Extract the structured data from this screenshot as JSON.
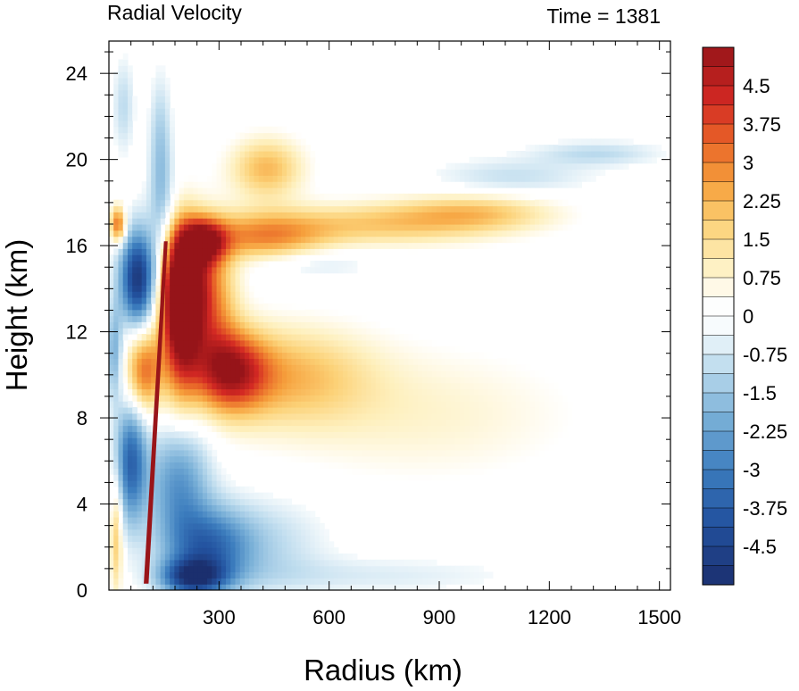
{
  "chart_data": {
    "type": "heatmap",
    "title_left": "Radial Velocity",
    "title_right": "Time = 1381",
    "xlabel": "Radius (km)",
    "ylabel": "Height (km)",
    "xlim": [
      0,
      1530
    ],
    "ylim": [
      0,
      25.5
    ],
    "xticks": [
      300,
      600,
      900,
      1200,
      1500
    ],
    "yticks": [
      0,
      4,
      8,
      12,
      16,
      20,
      24
    ],
    "colorbar": {
      "min": -5.25,
      "max": 5.25,
      "step": 0.375,
      "tick_labels": [
        "4.5",
        "3.75",
        "3",
        "2.25",
        "1.5",
        "0.75",
        "0",
        "-0.75",
        "-1.5",
        "-2.25",
        "-3",
        "-3.75",
        "-4.5"
      ],
      "tick_values": [
        4.5,
        3.75,
        3,
        2.25,
        1.5,
        0.75,
        0,
        -0.75,
        -1.5,
        -2.25,
        -3,
        -3.75,
        -4.5
      ]
    },
    "features": [
      {
        "r": 200,
        "z": 14.2,
        "v": 5.5,
        "sr": 45,
        "sz": 2.0
      },
      {
        "r": 195,
        "z": 12.0,
        "v": 3.0,
        "sr": 35,
        "sz": 2.5
      },
      {
        "r": 330,
        "z": 10.2,
        "v": 3.8,
        "sr": 70,
        "sz": 1.3
      },
      {
        "r": 480,
        "z": 10.0,
        "v": 2.0,
        "sr": 160,
        "sz": 1.6
      },
      {
        "r": 850,
        "z": 8.2,
        "v": 0.8,
        "sr": 300,
        "sz": 2.2
      },
      {
        "r": 280,
        "z": 13.5,
        "v": 2.5,
        "sr": 50,
        "sz": 2.2
      },
      {
        "r": 260,
        "z": 16.2,
        "v": 3.6,
        "sr": 40,
        "sz": 0.7
      },
      {
        "r": 420,
        "z": 16.4,
        "v": 2.6,
        "sr": 120,
        "sz": 0.8
      },
      {
        "r": 750,
        "z": 17.0,
        "v": 1.8,
        "sr": 230,
        "sz": 0.7
      },
      {
        "r": 1000,
        "z": 17.6,
        "v": 1.6,
        "sr": 150,
        "sz": 0.6
      },
      {
        "r": 430,
        "z": 19.6,
        "v": 2.2,
        "sr": 70,
        "sz": 1.0
      },
      {
        "r": 80,
        "z": 14.5,
        "v": -5.0,
        "sr": 35,
        "sz": 1.6
      },
      {
        "r": 145,
        "z": 17.5,
        "v": -1.5,
        "sr": 25,
        "sz": 2.0
      },
      {
        "r": 25,
        "z": 17.0,
        "v": 3.5,
        "sr": 15,
        "sz": 0.6
      },
      {
        "r": 95,
        "z": 10.2,
        "v": 3.2,
        "sr": 35,
        "sz": 1.4
      },
      {
        "r": 60,
        "z": 6.0,
        "v": -3.5,
        "sr": 30,
        "sz": 2.0
      },
      {
        "r": 190,
        "z": 5.0,
        "v": -2.5,
        "sr": 60,
        "sz": 2.0
      },
      {
        "r": 270,
        "z": 2.0,
        "v": -3.0,
        "sr": 80,
        "sz": 1.3
      },
      {
        "r": 420,
        "z": 2.2,
        "v": -1.0,
        "sr": 120,
        "sz": 1.5
      },
      {
        "r": 700,
        "z": 0.7,
        "v": -0.6,
        "sr": 300,
        "sz": 0.6
      },
      {
        "r": 230,
        "z": 0.6,
        "v": -4.0,
        "sr": 60,
        "sz": 0.6
      },
      {
        "r": 550,
        "z": 15.2,
        "v": -0.8,
        "sr": 120,
        "sz": 0.5
      },
      {
        "r": 1100,
        "z": 19.2,
        "v": -0.9,
        "sr": 150,
        "sz": 0.6
      },
      {
        "r": 1330,
        "z": 20.3,
        "v": -1.0,
        "sr": 120,
        "sz": 0.4
      },
      {
        "r": 140,
        "z": 21.0,
        "v": -1.2,
        "sr": 20,
        "sz": 2.0
      },
      {
        "r": 40,
        "z": 22.5,
        "v": -1.0,
        "sr": 20,
        "sz": 1.5
      },
      {
        "r": 20,
        "z": 2.5,
        "v": 2.0,
        "sr": 12,
        "sz": 2.0
      },
      {
        "r": 15,
        "z": 11.0,
        "v": -2.0,
        "sr": 15,
        "sz": 1.5
      }
    ]
  }
}
